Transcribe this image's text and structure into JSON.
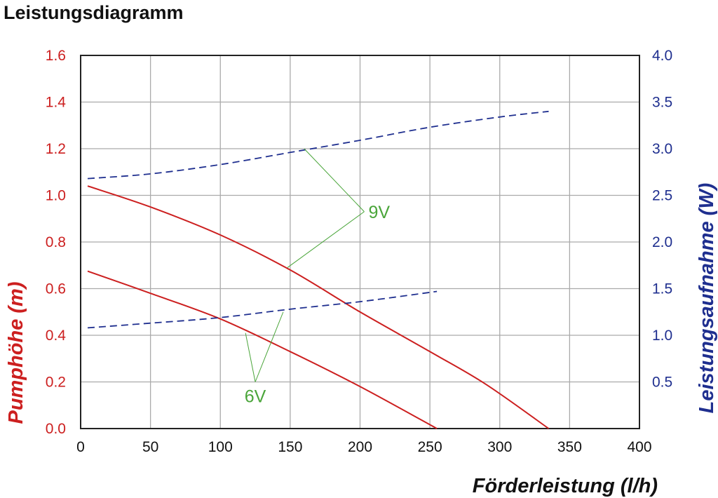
{
  "chart_data": {
    "type": "line",
    "title": "Leistungsdiagramm",
    "xlabel": "Förderleistung (l/h)",
    "ylabel_left": "Pumphöhe (m)",
    "ylabel_right": "Leistungsaufnahme (W)",
    "xlim": [
      0,
      400
    ],
    "ylim_left": [
      0,
      1.6
    ],
    "ylim_right": [
      0,
      4.0
    ],
    "x_ticks": [
      "0",
      "50",
      "100",
      "150",
      "200",
      "250",
      "300",
      "350",
      "400"
    ],
    "y_left_ticks": [
      "0.0",
      "0.2",
      "0.4",
      "0.6",
      "0.8",
      "1.0",
      "1.2",
      "1.4",
      "1.6"
    ],
    "y_right_ticks": [
      "0.5",
      "1.0",
      "1.5",
      "2.0",
      "2.5",
      "3.0",
      "3.5",
      "4.0"
    ],
    "grid": true,
    "colors": {
      "left_axis": "#cc1f1f",
      "right_axis": "#1f2f8f",
      "head_curve": "#cc1f1f",
      "power_curve": "#1f2f8f",
      "annotation": "#4aa53a",
      "grid": "#aaaaaa"
    },
    "series": [
      {
        "axis": "left",
        "style": "solid",
        "x": [
          5,
          50,
          100,
          150,
          200,
          250,
          290,
          335
        ],
        "y": [
          1.04,
          0.95,
          0.83,
          0.68,
          0.5,
          0.33,
          0.19,
          0.0
        ]
      },
      {
        "axis": "left",
        "style": "solid",
        "x": [
          5,
          50,
          100,
          150,
          200,
          255
        ],
        "y": [
          0.675,
          0.58,
          0.47,
          0.33,
          0.18,
          0.0
        ]
      },
      {
        "axis": "right",
        "style": "dashed",
        "x": [
          5,
          50,
          100,
          150,
          200,
          250,
          300,
          335
        ],
        "y": [
          2.68,
          2.73,
          2.83,
          2.96,
          3.09,
          3.23,
          3.34,
          3.4
        ]
      },
      {
        "axis": "right",
        "style": "dashed",
        "x": [
          5,
          50,
          100,
          150,
          200,
          255
        ],
        "y": [
          1.08,
          1.13,
          1.19,
          1.28,
          1.36,
          1.47
        ]
      }
    ],
    "annotations": [
      {
        "text": "9V",
        "x": 203,
        "y_left": 0.93,
        "targets": [
          [
            160,
            1.2
          ],
          [
            148,
            0.69
          ]
        ]
      },
      {
        "text": "6V",
        "x": 125,
        "y_left": 0.2,
        "targets": [
          [
            118,
            0.41
          ],
          [
            145,
            0.5
          ]
        ]
      }
    ]
  }
}
